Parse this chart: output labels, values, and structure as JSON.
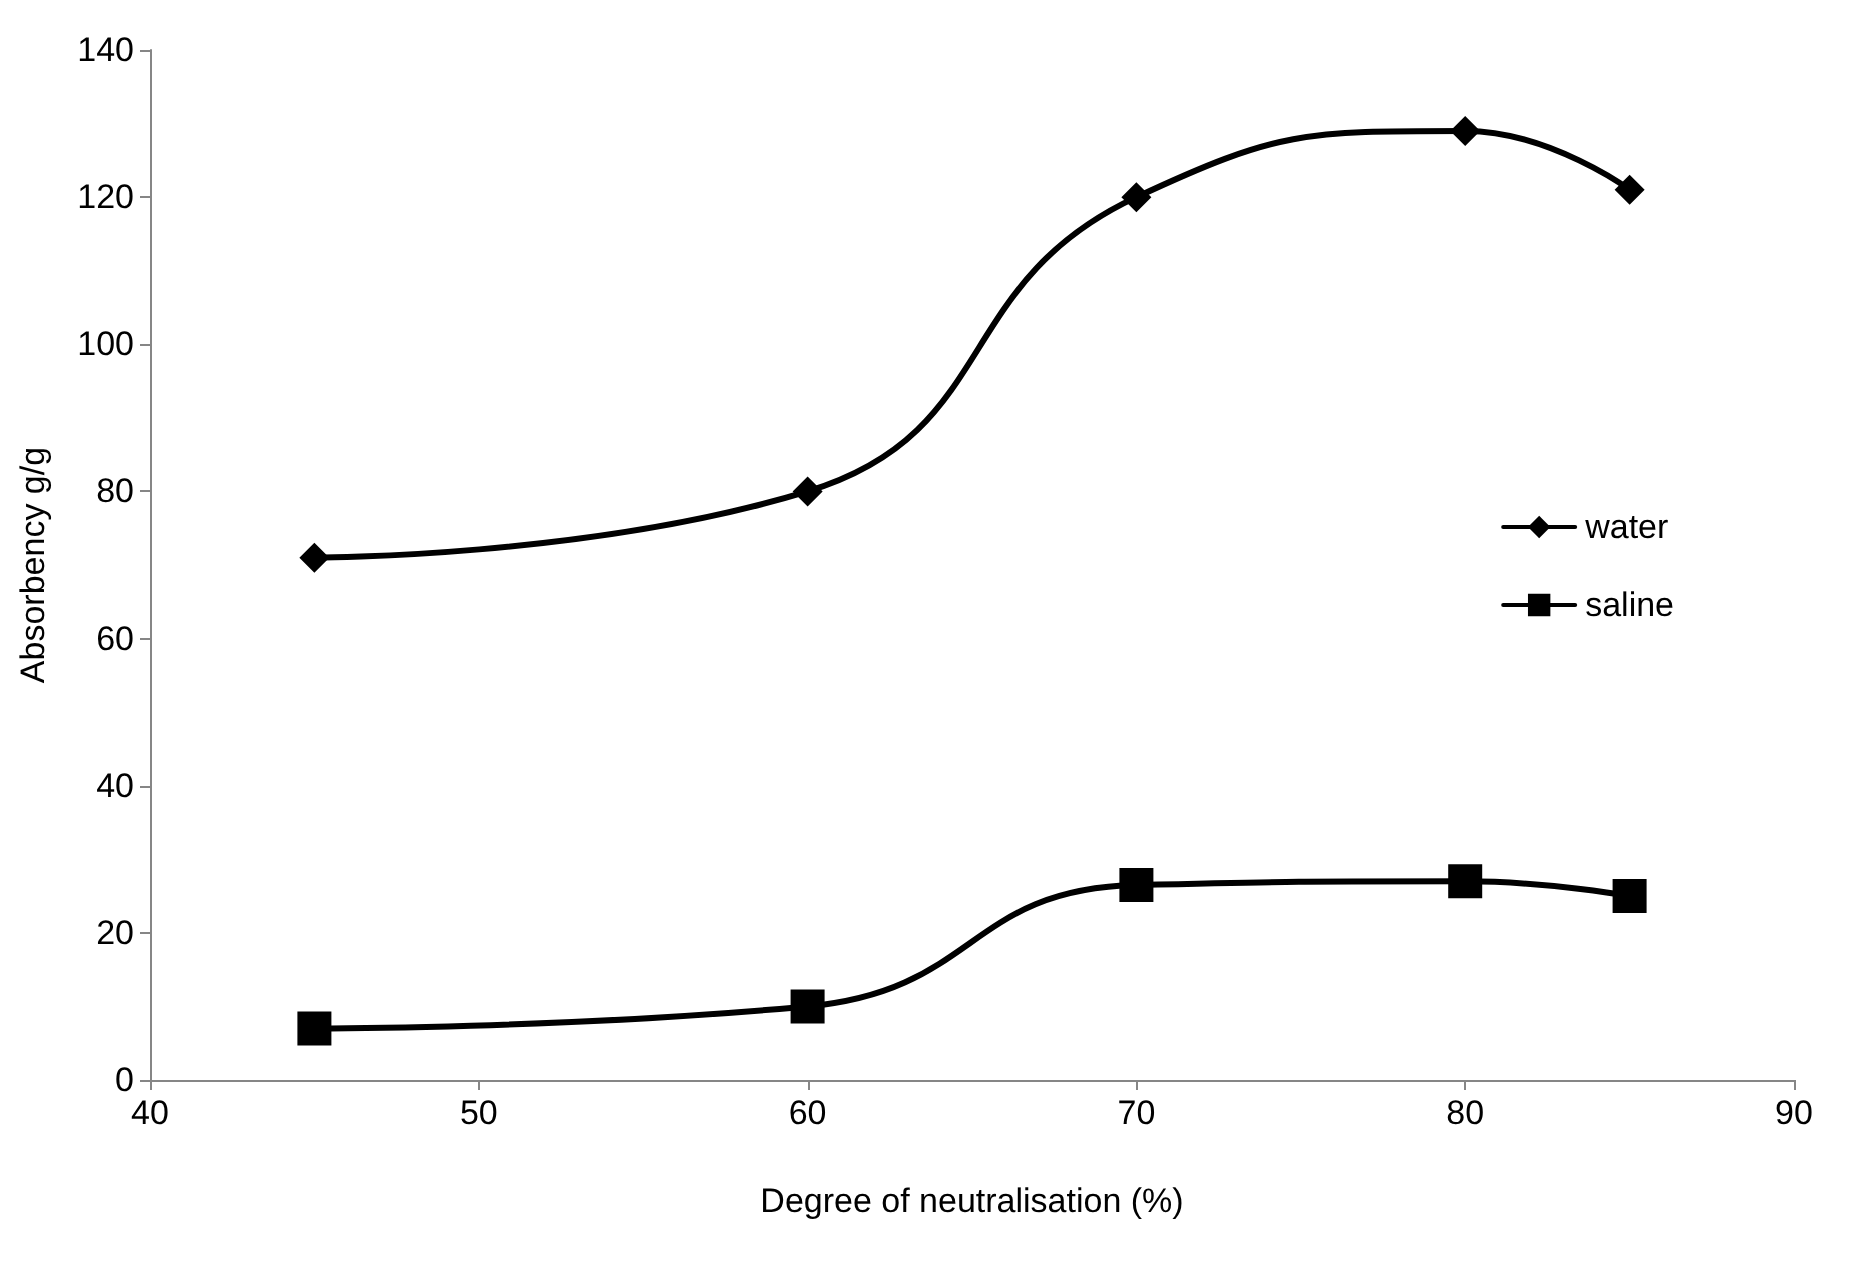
{
  "chart_data": {
    "type": "line",
    "xlabel": "Degree of neutralisation (%)",
    "ylabel": "Absorbency g/g",
    "x": [
      45,
      60,
      70,
      80,
      85
    ],
    "series": [
      {
        "name": "water",
        "color": "#000000",
        "marker": "diamond",
        "values": [
          71,
          80,
          120,
          129,
          121
        ]
      },
      {
        "name": "saline",
        "color": "#000000",
        "marker": "square",
        "values": [
          7,
          10,
          26.5,
          27,
          25
        ]
      }
    ],
    "xlim": [
      40,
      90
    ],
    "xticks": [
      40,
      50,
      60,
      70,
      80,
      90
    ],
    "ylim": [
      0,
      140
    ],
    "yticks": [
      0,
      20,
      40,
      60,
      80,
      100,
      120,
      140
    ],
    "grid": false,
    "legend": "right",
    "line_style": "solid"
  }
}
